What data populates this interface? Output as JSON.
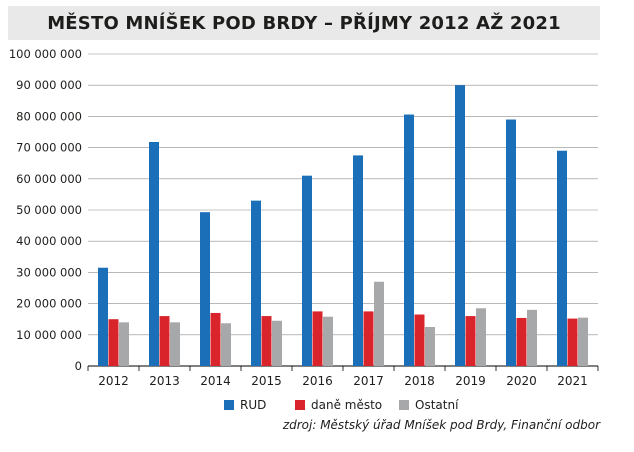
{
  "title": "MĚSTO MNÍŠEK POD BRDY – PŘÍJMY 2012 AŽ 2021",
  "source": "zdroj: Městský úřad Mníšek pod Brdy, Finanční odbor",
  "chart_data": {
    "type": "bar",
    "title": "MĚSTO MNÍŠEK POD BRDY – PŘÍJMY 2012 AŽ 2021",
    "categories": [
      "2012",
      "2013",
      "2014",
      "2015",
      "2016",
      "2017",
      "2018",
      "2019",
      "2020",
      "2021"
    ],
    "series": [
      {
        "name": "RUD",
        "color": "#1b6fb8",
        "values": [
          31500000,
          71800000,
          49300000,
          53000000,
          61000000,
          67500000,
          80600000,
          90000000,
          79000000,
          69000000
        ]
      },
      {
        "name": "daně město",
        "color": "#d8242a",
        "values": [
          15000000,
          16000000,
          17000000,
          16000000,
          17500000,
          17500000,
          16500000,
          16000000,
          15400000,
          15200000
        ]
      },
      {
        "name": "Ostatní",
        "color": "#a7a8aa",
        "values": [
          14000000,
          14000000,
          13700000,
          14500000,
          15800000,
          27000000,
          12500000,
          18500000,
          18000000,
          15500000
        ]
      }
    ],
    "ylim": [
      0,
      100000000
    ],
    "yticks": [
      "0",
      "10 000 000",
      "20 000 000",
      "30 000 000",
      "40 000 000",
      "50 000 000",
      "60 000 000",
      "70 000 000",
      "80 000 000",
      "90 000 000",
      "100 000 000"
    ],
    "grid": true,
    "legend_position": "bottom"
  }
}
